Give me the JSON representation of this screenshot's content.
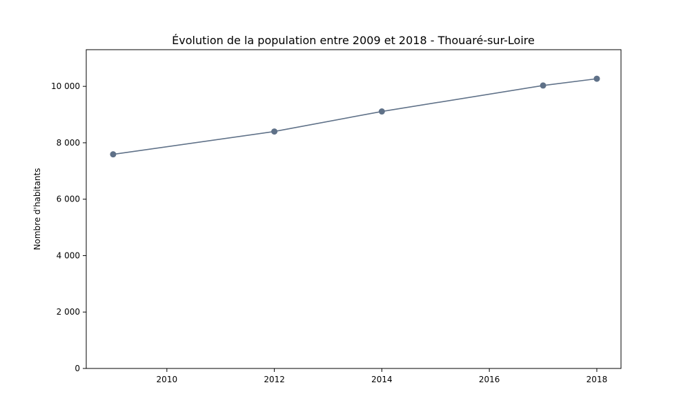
{
  "chart_data": {
    "type": "line",
    "title": "Évolution de la population entre 2009 et 2018 - Thouaré-sur-Loire",
    "xlabel": "",
    "ylabel": "Nombre d'habitants",
    "x": [
      2009,
      2012,
      2014,
      2017,
      2018
    ],
    "series": [
      {
        "values": [
          7590,
          8400,
          9110,
          10030,
          10270
        ],
        "color": "#5f7188"
      }
    ],
    "xlim": [
      2008.5,
      2018.45
    ],
    "ylim": [
      0,
      11300
    ],
    "xticks": [
      2010,
      2012,
      2014,
      2016,
      2018
    ],
    "xtick_labels": [
      "2010",
      "2012",
      "2014",
      "2016",
      "2018"
    ],
    "yticks": [
      0,
      2000,
      4000,
      6000,
      8000,
      10000
    ],
    "ytick_labels": [
      "0",
      "2 000",
      "4 000",
      "6 000",
      "8 000",
      "10 000"
    ],
    "grid": false,
    "marker": "circle"
  }
}
